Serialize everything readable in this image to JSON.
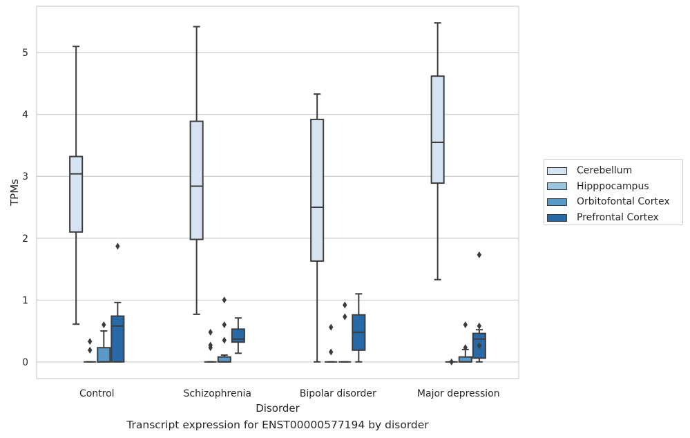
{
  "chart_data": {
    "type": "box",
    "categories": [
      "Control",
      "Schizophrenia",
      "Bipolar disorder",
      "Major depression"
    ],
    "xlabel": "Disorder",
    "ylabel": "TPMs",
    "ylim": [
      -0.27,
      5.75
    ],
    "yticks": [
      0,
      1,
      2,
      3,
      4,
      5
    ],
    "grid": "y",
    "legend_position": "right",
    "series": [
      {
        "name": "Cerebellum",
        "color": "#d6e4f1",
        "boxes": [
          {
            "min": 0.61,
            "q1": 2.1,
            "median": 3.04,
            "q3": 3.32,
            "max": 5.1,
            "outliers": []
          },
          {
            "min": 0.77,
            "q1": 1.98,
            "median": 2.84,
            "q3": 3.89,
            "max": 5.42,
            "outliers": []
          },
          {
            "min": 0.0,
            "q1": 1.63,
            "median": 2.5,
            "q3": 3.92,
            "max": 4.33,
            "outliers": []
          },
          {
            "min": 1.33,
            "q1": 2.89,
            "median": 3.55,
            "q3": 4.62,
            "max": 5.48,
            "outliers": []
          }
        ]
      },
      {
        "name": "Hipppocampus",
        "color": "#9ac5e0",
        "boxes": [
          {
            "min": 0.0,
            "q1": 0.0,
            "median": 0.0,
            "q3": 0.0,
            "max": 0.0,
            "outliers": [
              0.33,
              0.19
            ]
          },
          {
            "min": 0.0,
            "q1": 0.0,
            "median": 0.0,
            "q3": 0.0,
            "max": 0.0,
            "outliers": [
              0.48,
              0.27,
              0.23
            ]
          },
          {
            "min": 0.0,
            "q1": 0.0,
            "median": 0.0,
            "q3": 0.0,
            "max": 0.0,
            "outliers": [
              0.56,
              0.16
            ]
          },
          {
            "min": 0.0,
            "q1": 0.0,
            "median": 0.0,
            "q3": 0.0,
            "max": 0.0,
            "outliers": [
              0.0
            ]
          }
        ]
      },
      {
        "name": "Orbitofontal Cortex",
        "color": "#5a9ac8",
        "boxes": [
          {
            "min": 0.0,
            "q1": 0.0,
            "median": 0.0,
            "q3": 0.23,
            "max": 0.5,
            "outliers": [
              0.6
            ]
          },
          {
            "min": 0.0,
            "q1": 0.0,
            "median": 0.0,
            "q3": 0.08,
            "max": 0.11,
            "outliers": [
              1.0,
              0.6,
              0.35
            ]
          },
          {
            "min": 0.0,
            "q1": 0.0,
            "median": 0.0,
            "q3": 0.0,
            "max": 0.0,
            "outliers": [
              0.92,
              0.73
            ]
          },
          {
            "min": 0.0,
            "q1": 0.0,
            "median": 0.0,
            "q3": 0.08,
            "max": 0.2,
            "outliers": [
              0.6,
              0.23
            ]
          }
        ]
      },
      {
        "name": "Prefrontal Cortex",
        "color": "#2869a8",
        "boxes": [
          {
            "min": 0.0,
            "q1": 0.0,
            "median": 0.58,
            "q3": 0.74,
            "max": 0.96,
            "outliers": [
              1.87
            ]
          },
          {
            "min": 0.14,
            "q1": 0.32,
            "median": 0.37,
            "q3": 0.53,
            "max": 0.71,
            "outliers": []
          },
          {
            "min": 0.0,
            "q1": 0.19,
            "median": 0.48,
            "q3": 0.76,
            "max": 1.1,
            "outliers": []
          },
          {
            "min": 0.0,
            "q1": 0.06,
            "median": 0.37,
            "q3": 0.46,
            "max": 0.52,
            "outliers": [
              1.73,
              0.58,
              0.26
            ]
          }
        ]
      }
    ]
  },
  "caption": "Transcript expression for ENST00000577194 by disorder"
}
